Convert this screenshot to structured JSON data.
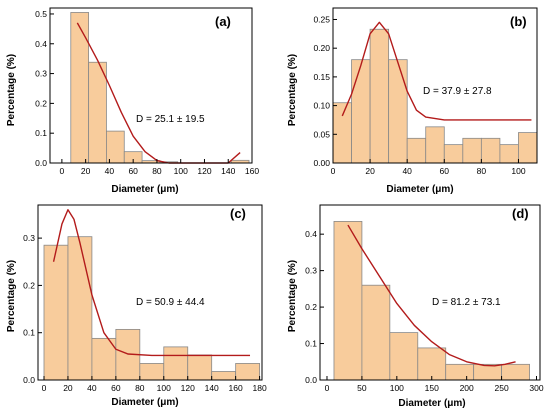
{
  "chart_data": [
    {
      "type": "bar",
      "panel_label": "(a)",
      "annotation": "D = 25.1 ± 19.5",
      "xlabel": "Diameter (μm)",
      "ylabel": "Percentage (%)",
      "xlim": [
        -10,
        160
      ],
      "ylim": [
        0,
        0.52
      ],
      "xticks": [
        0,
        20,
        40,
        60,
        80,
        100,
        120,
        140,
        160
      ],
      "yticks": [
        0.0,
        0.1,
        0.2,
        0.3,
        0.4,
        0.5
      ],
      "ytick_labels": [
        "0.0",
        "0.1",
        "0.2",
        "0.3",
        "0.4",
        "0.5"
      ],
      "bin_width": 15,
      "bins": [
        {
          "x": 15,
          "value": 0.505
        },
        {
          "x": 30,
          "value": 0.338
        },
        {
          "x": 45,
          "value": 0.107
        },
        {
          "x": 60,
          "value": 0.038
        },
        {
          "x": 75,
          "value": 0.008
        },
        {
          "x": 90,
          "value": 0.004
        },
        {
          "x": 150,
          "value": 0.009
        }
      ],
      "fit": [
        [
          13,
          0.47
        ],
        [
          20,
          0.42
        ],
        [
          30,
          0.345
        ],
        [
          40,
          0.26
        ],
        [
          50,
          0.17
        ],
        [
          60,
          0.09
        ],
        [
          70,
          0.038
        ],
        [
          80,
          0.008
        ],
        [
          90,
          0.0
        ],
        [
          140,
          0.0
        ],
        [
          150,
          0.035
        ]
      ],
      "colors": {
        "bar": "#f8cc9c",
        "bar_stroke": "#888888",
        "fit": "#b31b1b"
      }
    },
    {
      "type": "bar",
      "panel_label": "(b)",
      "annotation": "D = 37.9 ± 27.8",
      "xlabel": "Diameter (μm)",
      "ylabel": "Percentage (%)",
      "xlim": [
        0,
        110
      ],
      "ylim": [
        0,
        0.27
      ],
      "xticks": [
        0,
        20,
        40,
        60,
        80,
        100
      ],
      "yticks": [
        0.0,
        0.05,
        0.1,
        0.15,
        0.2,
        0.25
      ],
      "ytick_labels": [
        "0.00",
        "0.05",
        "0.10",
        "0.15",
        "0.20",
        "0.25"
      ],
      "bin_width": 10,
      "bins": [
        {
          "x": 5,
          "value": 0.105
        },
        {
          "x": 15,
          "value": 0.18
        },
        {
          "x": 25,
          "value": 0.233
        },
        {
          "x": 35,
          "value": 0.18
        },
        {
          "x": 45,
          "value": 0.043
        },
        {
          "x": 55,
          "value": 0.063
        },
        {
          "x": 65,
          "value": 0.032
        },
        {
          "x": 75,
          "value": 0.043
        },
        {
          "x": 85,
          "value": 0.043
        },
        {
          "x": 95,
          "value": 0.032
        },
        {
          "x": 105,
          "value": 0.053
        }
      ],
      "fit": [
        [
          5,
          0.082
        ],
        [
          10,
          0.12
        ],
        [
          15,
          0.17
        ],
        [
          20,
          0.225
        ],
        [
          25,
          0.245
        ],
        [
          30,
          0.225
        ],
        [
          35,
          0.175
        ],
        [
          40,
          0.125
        ],
        [
          45,
          0.092
        ],
        [
          50,
          0.08
        ],
        [
          60,
          0.075
        ],
        [
          80,
          0.075
        ],
        [
          107,
          0.075
        ]
      ],
      "colors": {
        "bar": "#f8cc9c",
        "bar_stroke": "#888888",
        "fit": "#b31b1b"
      }
    },
    {
      "type": "bar",
      "panel_label": "(c)",
      "annotation": "D = 50.9 ± 44.4",
      "xlabel": "Diameter (μm)",
      "ylabel": "Percentage (%)",
      "xlim": [
        -5,
        182
      ],
      "ylim": [
        0,
        0.37
      ],
      "xticks": [
        0,
        20,
        40,
        60,
        80,
        100,
        120,
        140,
        160,
        180
      ],
      "yticks": [
        0.0,
        0.1,
        0.2,
        0.3
      ],
      "ytick_labels": [
        "0.0",
        "0.1",
        "0.2",
        "0.3"
      ],
      "bin_width": 20,
      "bins": [
        {
          "x": 10,
          "value": 0.285
        },
        {
          "x": 30,
          "value": 0.303
        },
        {
          "x": 50,
          "value": 0.088
        },
        {
          "x": 70,
          "value": 0.107
        },
        {
          "x": 90,
          "value": 0.035
        },
        {
          "x": 110,
          "value": 0.07
        },
        {
          "x": 130,
          "value": 0.053
        },
        {
          "x": 150,
          "value": 0.018
        },
        {
          "x": 170,
          "value": 0.035
        }
      ],
      "fit": [
        [
          8,
          0.25
        ],
        [
          15,
          0.33
        ],
        [
          20,
          0.36
        ],
        [
          25,
          0.34
        ],
        [
          30,
          0.29
        ],
        [
          40,
          0.18
        ],
        [
          50,
          0.1
        ],
        [
          60,
          0.065
        ],
        [
          70,
          0.055
        ],
        [
          90,
          0.052
        ],
        [
          172,
          0.052
        ]
      ],
      "colors": {
        "bar": "#f8cc9c",
        "bar_stroke": "#888888",
        "fit": "#b31b1b"
      }
    },
    {
      "type": "bar",
      "panel_label": "(d)",
      "annotation": "D = 81.2 ± 73.1",
      "xlabel": "Diameter (μm)",
      "ylabel": "Percentage (%)",
      "xlim": [
        -10,
        305
      ],
      "ylim": [
        0,
        0.48
      ],
      "xticks": [
        0,
        50,
        100,
        150,
        200,
        250,
        300
      ],
      "yticks": [
        0.0,
        0.1,
        0.2,
        0.3,
        0.4
      ],
      "ytick_labels": [
        "0.0",
        "0.1",
        "0.2",
        "0.3",
        "0.4"
      ],
      "bin_width": 40,
      "bins": [
        {
          "x": 30,
          "value": 0.435
        },
        {
          "x": 70,
          "value": 0.26
        },
        {
          "x": 110,
          "value": 0.13
        },
        {
          "x": 150,
          "value": 0.088
        },
        {
          "x": 190,
          "value": 0.043
        },
        {
          "x": 230,
          "value": 0.043
        },
        {
          "x": 270,
          "value": 0.043
        }
      ],
      "fit": [
        [
          30,
          0.425
        ],
        [
          50,
          0.36
        ],
        [
          75,
          0.285
        ],
        [
          100,
          0.21
        ],
        [
          125,
          0.15
        ],
        [
          150,
          0.105
        ],
        [
          175,
          0.07
        ],
        [
          200,
          0.05
        ],
        [
          225,
          0.04
        ],
        [
          240,
          0.039
        ],
        [
          255,
          0.043
        ],
        [
          270,
          0.05
        ]
      ],
      "colors": {
        "bar": "#f8cc9c",
        "bar_stroke": "#888888",
        "fit": "#b31b1b"
      }
    }
  ]
}
